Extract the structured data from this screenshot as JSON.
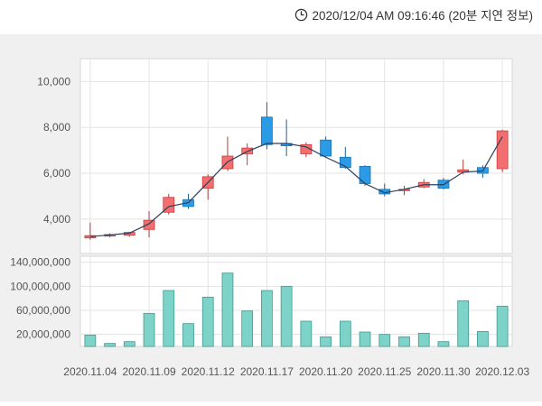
{
  "header": {
    "clock_icon": "clock-icon",
    "timestamp": "2020/12/04 AM 09:16:46 (20분 지연 정보)"
  },
  "colors": {
    "up_fill": "#f36f6f",
    "up_stroke": "#c73a3a",
    "down_fill": "#2b9be6",
    "down_stroke": "#1670b5",
    "wick_up": "#b33a3a",
    "wick_down": "#1d5f99",
    "ma_line": "#2d3f5c",
    "volume_fill": "#7dd3c8",
    "volume_stroke": "#3f9a90",
    "grid": "#e3e3e3",
    "panel_bg": "#ffffff",
    "outer_bg": "#f0f0f0"
  },
  "chart_data": [
    {
      "type": "candlestick",
      "title": "",
      "ylim": [
        2500,
        11000
      ],
      "yticks": [
        4000,
        6000,
        8000,
        10000
      ],
      "ytick_labels": [
        "4,000",
        "6,000",
        "8,000",
        "10,000"
      ],
      "grid": true,
      "line_series": [
        3240,
        3310,
        3390,
        3800,
        4550,
        4720,
        5600,
        6500,
        6950,
        7300,
        7300,
        7150,
        6700,
        6300,
        5550,
        5150,
        5300,
        5500,
        5500,
        6050,
        6100,
        7600
      ],
      "candles": [
        {
          "open": 3180,
          "high": 3850,
          "low": 3100,
          "close": 3280
        },
        {
          "open": 3260,
          "high": 3380,
          "low": 3200,
          "close": 3330
        },
        {
          "open": 3300,
          "high": 3450,
          "low": 3230,
          "close": 3420
        },
        {
          "open": 3550,
          "high": 4350,
          "low": 3200,
          "close": 3950
        },
        {
          "open": 4300,
          "high": 5100,
          "low": 4200,
          "close": 4950
        },
        {
          "open": 4850,
          "high": 5100,
          "low": 4450,
          "close": 4550
        },
        {
          "open": 5350,
          "high": 5950,
          "low": 4850,
          "close": 5850
        },
        {
          "open": 6200,
          "high": 7600,
          "low": 6100,
          "close": 6750
        },
        {
          "open": 6850,
          "high": 7300,
          "low": 6350,
          "close": 7100
        },
        {
          "open": 8450,
          "high": 9100,
          "low": 7050,
          "close": 7250
        },
        {
          "open": 7300,
          "high": 8350,
          "low": 6750,
          "close": 7200
        },
        {
          "open": 6850,
          "high": 7350,
          "low": 6700,
          "close": 7250
        },
        {
          "open": 7450,
          "high": 7600,
          "low": 6700,
          "close": 6750
        },
        {
          "open": 6700,
          "high": 7150,
          "low": 6200,
          "close": 6250
        },
        {
          "open": 6300,
          "high": 6350,
          "low": 5450,
          "close": 5550
        },
        {
          "open": 5300,
          "high": 5550,
          "low": 5000,
          "close": 5100
        },
        {
          "open": 5250,
          "high": 5450,
          "low": 5050,
          "close": 5300
        },
        {
          "open": 5400,
          "high": 5750,
          "low": 5350,
          "close": 5600
        },
        {
          "open": 5700,
          "high": 5800,
          "low": 5300,
          "close": 5350
        },
        {
          "open": 6050,
          "high": 6600,
          "low": 5950,
          "close": 6150
        },
        {
          "open": 6250,
          "high": 6350,
          "low": 5800,
          "close": 6000
        },
        {
          "open": 6200,
          "high": 7900,
          "low": 6050,
          "close": 7850
        }
      ]
    },
    {
      "type": "bar",
      "title": "",
      "ylim": [
        0,
        150000000
      ],
      "yticks": [
        20000000,
        60000000,
        100000000,
        140000000
      ],
      "ytick_labels": [
        "20,000,000",
        "60,000,000",
        "100,000,000",
        "140,000,000"
      ],
      "grid": true,
      "values": [
        19000000,
        5000000,
        8000000,
        55000000,
        93000000,
        38000000,
        82000000,
        122000000,
        59000000,
        93000000,
        100000000,
        42000000,
        16000000,
        42000000,
        24000000,
        20000000,
        16000000,
        22000000,
        8000000,
        76000000,
        25000000,
        67000000
      ]
    }
  ],
  "x_labels": [
    {
      "index": 0,
      "label": "2020.11.04"
    },
    {
      "index": 3,
      "label": "2020.11.09"
    },
    {
      "index": 6,
      "label": "2020.11.12"
    },
    {
      "index": 9,
      "label": "2020.11.17"
    },
    {
      "index": 12,
      "label": "2020.11.20"
    },
    {
      "index": 15,
      "label": "2020.11.25"
    },
    {
      "index": 18,
      "label": "2020.11.30"
    },
    {
      "index": 21,
      "label": "2020.12.03"
    }
  ]
}
